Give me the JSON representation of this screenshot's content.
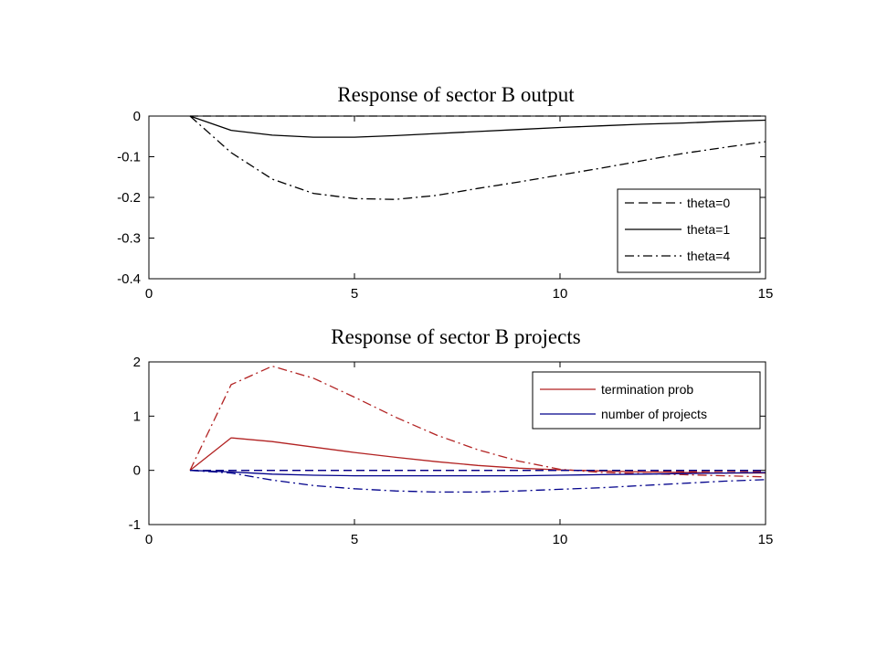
{
  "chart_data": [
    {
      "type": "line",
      "title": "Response of sector B output",
      "xlabel": "",
      "ylabel": "",
      "xlim": [
        0,
        15
      ],
      "ylim": [
        -0.4,
        0
      ],
      "xticks": [
        0,
        5,
        10,
        15
      ],
      "yticks": [
        0,
        -0.1,
        -0.2,
        -0.3,
        -0.4
      ],
      "x_tick_labels": [
        "0",
        "5",
        "10",
        "15"
      ],
      "y_tick_labels": [
        "0",
        "-0.1",
        "-0.2",
        "-0.3",
        "-0.4"
      ],
      "grid": false,
      "legend_position": "bottom-right",
      "legend": [
        {
          "label": "theta=0",
          "style": "dashed",
          "color": "#000000"
        },
        {
          "label": "theta=1",
          "style": "solid",
          "color": "#000000"
        },
        {
          "label": "theta=4",
          "style": "dashdot",
          "color": "#000000"
        }
      ],
      "series": [
        {
          "name": "theta=0",
          "style": "dashed",
          "color": "#000000",
          "x": [
            1,
            2,
            3,
            4,
            5,
            6,
            7,
            8,
            9,
            10,
            11,
            12,
            13,
            14,
            15
          ],
          "y": [
            0,
            0,
            0,
            0,
            0,
            0,
            0,
            0,
            0,
            0,
            0,
            0,
            0,
            0,
            0
          ]
        },
        {
          "name": "theta=1",
          "style": "solid",
          "color": "#000000",
          "x": [
            1,
            2,
            3,
            4,
            5,
            6,
            7,
            8,
            9,
            10,
            11,
            12,
            13,
            14,
            15
          ],
          "y": [
            0,
            -0.035,
            -0.047,
            -0.052,
            -0.052,
            -0.048,
            -0.043,
            -0.038,
            -0.033,
            -0.028,
            -0.024,
            -0.02,
            -0.017,
            -0.013,
            -0.01
          ]
        },
        {
          "name": "theta=4",
          "style": "dashdot",
          "color": "#000000",
          "x": [
            1,
            2,
            3,
            4,
            5,
            6,
            7,
            8,
            9,
            10,
            11,
            12,
            13,
            14,
            15
          ],
          "y": [
            0,
            -0.09,
            -0.155,
            -0.19,
            -0.203,
            -0.205,
            -0.195,
            -0.178,
            -0.162,
            -0.145,
            -0.128,
            -0.11,
            -0.092,
            -0.077,
            -0.063
          ]
        }
      ]
    },
    {
      "type": "line",
      "title": "Response of sector B projects",
      "xlabel": "",
      "ylabel": "",
      "xlim": [
        0,
        15
      ],
      "ylim": [
        -1,
        2
      ],
      "xticks": [
        0,
        5,
        10,
        15
      ],
      "yticks": [
        2,
        1,
        0,
        -1
      ],
      "x_tick_labels": [
        "0",
        "5",
        "10",
        "15"
      ],
      "y_tick_labels": [
        "2",
        "1",
        "0",
        "-1"
      ],
      "grid": false,
      "legend_position": "top-right",
      "legend": [
        {
          "label": "termination prob",
          "style": "solid",
          "color": "#b22222"
        },
        {
          "label": "number of projects",
          "style": "solid",
          "color": "#00008b"
        }
      ],
      "series": [
        {
          "style": "dashed",
          "color": "#b22222",
          "x": [
            1,
            2,
            3,
            4,
            5,
            6,
            7,
            8,
            9,
            10,
            11,
            12,
            13,
            14,
            15
          ],
          "y": [
            0,
            0,
            0,
            0,
            0,
            0,
            0,
            0,
            0,
            0,
            0,
            0,
            -0.02,
            -0.02,
            -0.02
          ]
        },
        {
          "style": "solid",
          "color": "#b22222",
          "x": [
            1,
            2,
            3,
            4,
            5,
            6,
            7,
            8,
            9,
            10,
            11,
            12,
            13,
            14,
            15
          ],
          "y": [
            0,
            0.6,
            0.53,
            0.43,
            0.33,
            0.24,
            0.16,
            0.09,
            0.04,
            0.01,
            -0.01,
            -0.03,
            -0.04,
            -0.05,
            -0.05
          ]
        },
        {
          "style": "dashdot",
          "color": "#b22222",
          "x": [
            1,
            2,
            3,
            4,
            5,
            6,
            7,
            8,
            9,
            10,
            11,
            12,
            13,
            14,
            15
          ],
          "y": [
            0,
            1.58,
            1.92,
            1.7,
            1.35,
            0.98,
            0.65,
            0.38,
            0.17,
            0.02,
            -0.04,
            -0.06,
            -0.08,
            -0.1,
            -0.12
          ]
        },
        {
          "style": "dashed",
          "color": "#00008b",
          "x": [
            1,
            2,
            3,
            4,
            5,
            6,
            7,
            8,
            9,
            10,
            11,
            12,
            13,
            14,
            15
          ],
          "y": [
            0,
            0,
            0,
            0,
            0,
            0,
            0,
            0,
            0,
            0,
            0,
            0,
            0,
            0,
            0
          ]
        },
        {
          "style": "solid",
          "color": "#00008b",
          "x": [
            1,
            2,
            3,
            4,
            5,
            6,
            7,
            8,
            9,
            10,
            11,
            12,
            13,
            14,
            15
          ],
          "y": [
            0,
            -0.03,
            -0.07,
            -0.09,
            -0.1,
            -0.1,
            -0.1,
            -0.1,
            -0.1,
            -0.09,
            -0.08,
            -0.07,
            -0.06,
            -0.05,
            -0.04
          ]
        },
        {
          "style": "dashdot",
          "color": "#00008b",
          "x": [
            1,
            2,
            3,
            4,
            5,
            6,
            7,
            8,
            9,
            10,
            11,
            12,
            13,
            14,
            15
          ],
          "y": [
            0,
            -0.05,
            -0.18,
            -0.28,
            -0.34,
            -0.38,
            -0.4,
            -0.4,
            -0.38,
            -0.35,
            -0.32,
            -0.28,
            -0.24,
            -0.2,
            -0.17
          ]
        }
      ]
    }
  ]
}
